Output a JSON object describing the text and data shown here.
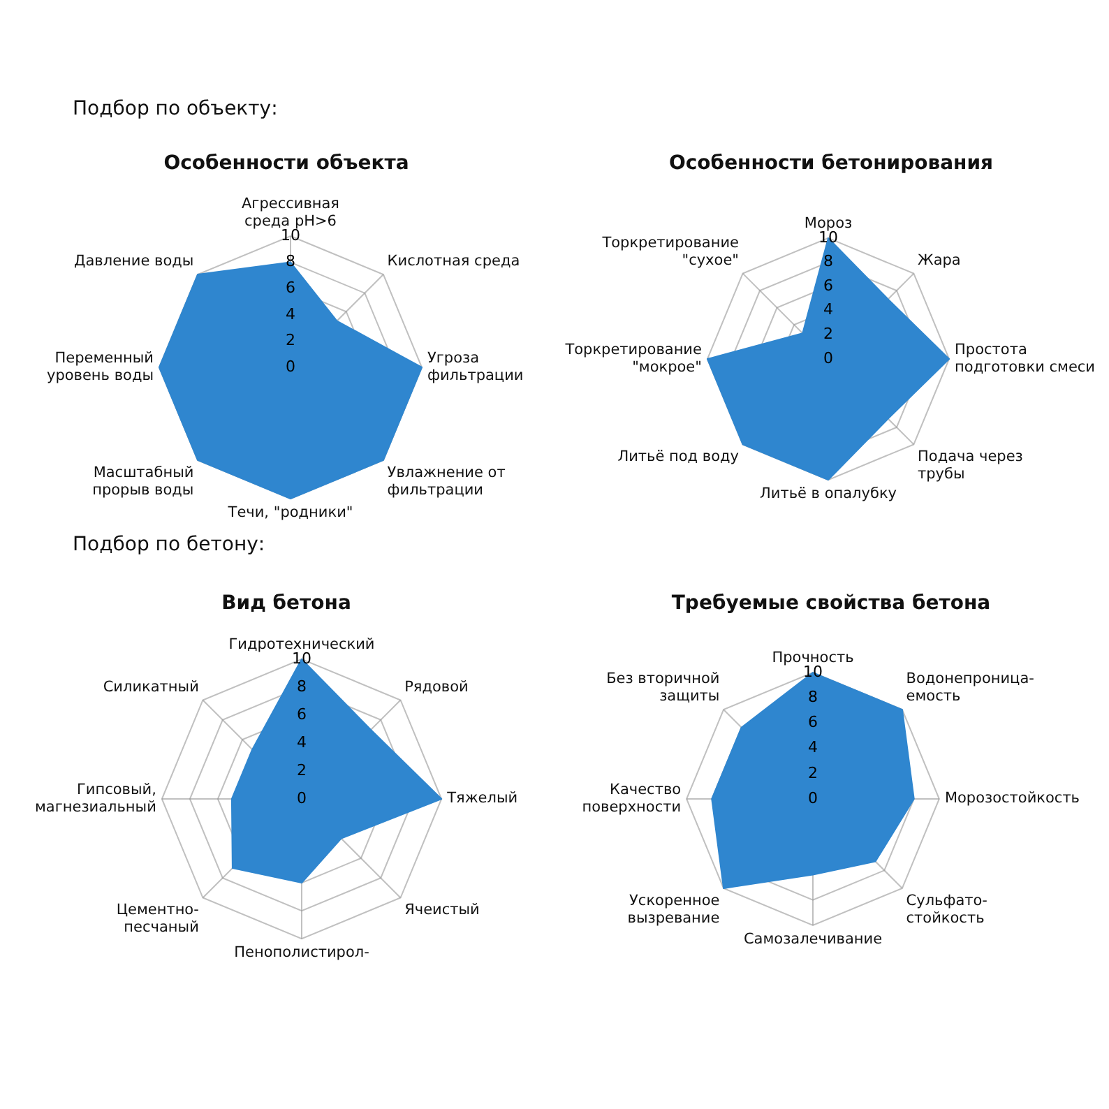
{
  "chart_data": [
    {
      "type": "radar",
      "title": "Особенности объекта",
      "annotations": [
        "Подбор по объекту:"
      ],
      "categories": [
        "Агрессивная среда pH>6",
        "Кислотная среда",
        "Угроза фильтрации",
        "Увлажнение от фильтрации",
        "Течи, \"родники\"",
        "Масштабный прорыв воды",
        "Переменный уровень воды",
        "Давление воды"
      ],
      "ylim": [
        0,
        10
      ],
      "yticks": [
        0,
        2,
        4,
        6,
        8,
        10
      ],
      "grid": true,
      "legend": false,
      "series": [
        {
          "color": "#2f86cf",
          "values": [
            8,
            5,
            10,
            10,
            10,
            10,
            10,
            10
          ]
        }
      ]
    },
    {
      "type": "radar",
      "title": "Особенности бетонирования",
      "categories": [
        "Мороз",
        "Жара",
        "Простота подготовки смеси",
        "Подача через трубы",
        "Литьё в опалубку",
        "Литьё под воду",
        "Торкретирование \"мокрое\"",
        "Торкретирование \"сухое\""
      ],
      "ylim": [
        0,
        10
      ],
      "yticks": [
        0,
        2,
        4,
        6,
        8,
        10
      ],
      "grid": true,
      "legend": false,
      "series": [
        {
          "color": "#2f86cf",
          "values": [
            10,
            7,
            10,
            7,
            10,
            10,
            10,
            3
          ]
        }
      ]
    },
    {
      "type": "radar",
      "title": "Вид бетона",
      "annotations": [
        "Подбор по бетону:"
      ],
      "categories": [
        "Гидротехнический",
        "Рядовой",
        "Тяжелый",
        "Ячеистый",
        "Пенополистирол-",
        "Цементно- песчаный",
        "Гипсовый, магнезиальный",
        "Силикатный"
      ],
      "ylim": [
        0,
        10
      ],
      "yticks": [
        0,
        2,
        4,
        6,
        8,
        10
      ],
      "grid": true,
      "legend": false,
      "series": [
        {
          "color": "#2f86cf",
          "values": [
            10,
            7,
            10,
            4,
            6,
            7,
            5,
            5
          ]
        }
      ]
    },
    {
      "type": "radar",
      "title": "Требуемые свойства бетона",
      "categories": [
        "Прочность",
        "Водонепроница- емость",
        "Морозостойкость",
        "Сульфато- стойкость",
        "Самозалечивание",
        "Ускоренное вызревание",
        "Качество поверхности",
        "Без вторичной защиты"
      ],
      "ylim": [
        0,
        10
      ],
      "yticks": [
        0,
        2,
        4,
        6,
        8,
        10
      ],
      "grid": true,
      "legend": false,
      "series": [
        {
          "color": "#2f86cf",
          "values": [
            10,
            10,
            8,
            7,
            6,
            10,
            8,
            8
          ]
        }
      ]
    }
  ]
}
